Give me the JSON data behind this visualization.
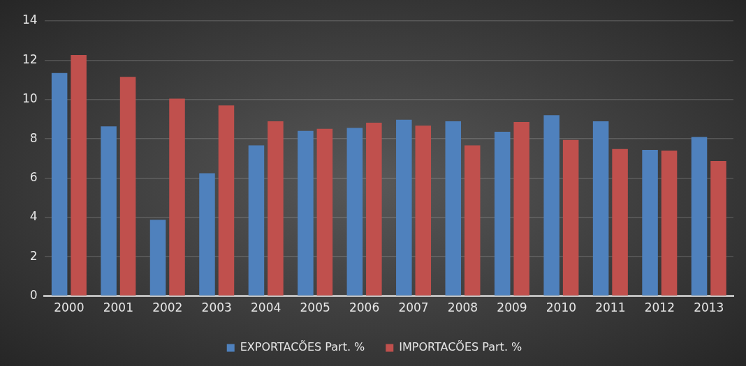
{
  "chart_data": {
    "type": "bar",
    "categories": [
      "2000",
      "2001",
      "2002",
      "2003",
      "2004",
      "2005",
      "2006",
      "2007",
      "2008",
      "2009",
      "2010",
      "2011",
      "2012",
      "2013"
    ],
    "series": [
      {
        "name": "EXPORTACÕES Part. %",
        "color": "#4f81bd",
        "values": [
          11.35,
          8.63,
          3.88,
          6.25,
          7.67,
          8.4,
          8.55,
          8.97,
          8.89,
          8.36,
          9.2,
          8.89,
          7.44,
          8.09
        ]
      },
      {
        "name": "IMPORTACÕES Part. %",
        "color": "#c0504d",
        "values": [
          12.26,
          11.15,
          10.04,
          9.7,
          8.89,
          8.51,
          8.82,
          8.67,
          7.67,
          8.86,
          7.94,
          7.48,
          7.4,
          6.87
        ]
      }
    ],
    "ylim": [
      0,
      14
    ],
    "yticks": [
      0,
      2,
      4,
      6,
      8,
      10,
      12,
      14
    ],
    "grid": "y",
    "legend": "bottom"
  }
}
